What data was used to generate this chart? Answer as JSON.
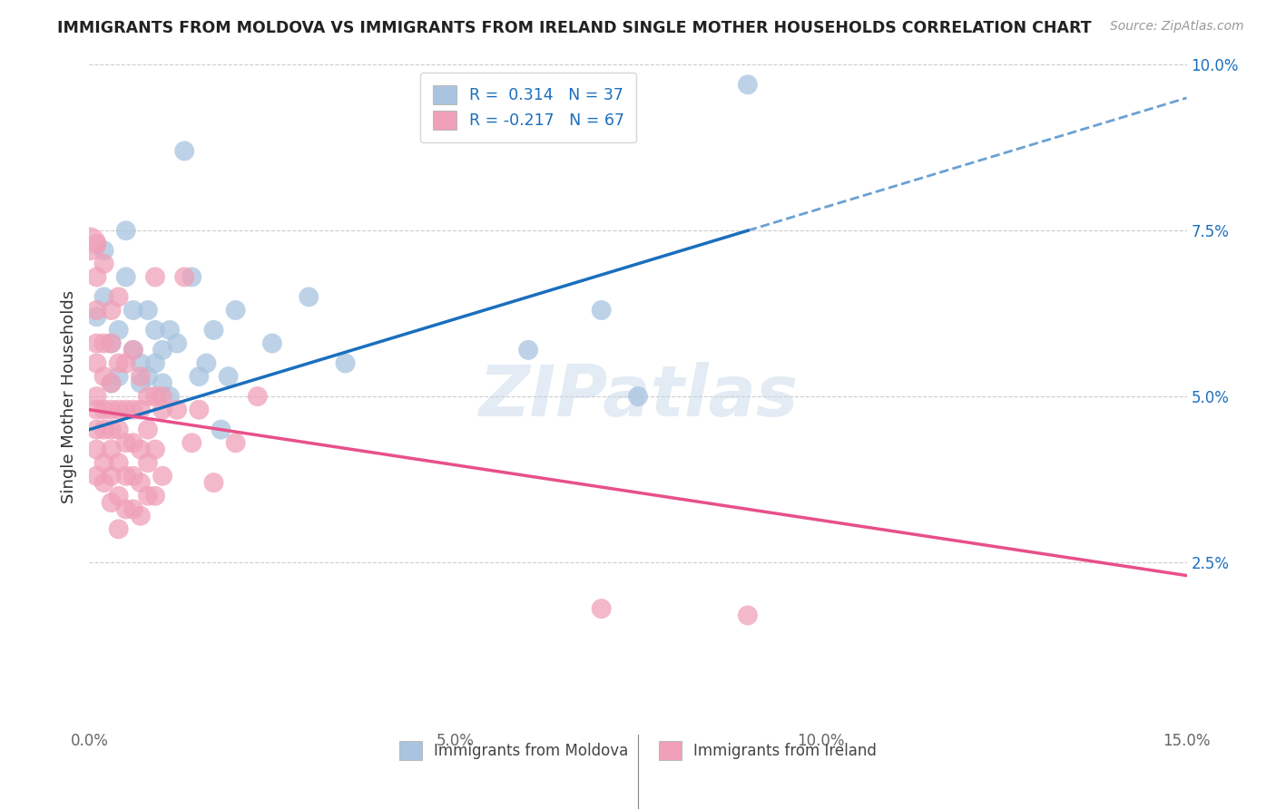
{
  "title": "IMMIGRANTS FROM MOLDOVA VS IMMIGRANTS FROM IRELAND SINGLE MOTHER HOUSEHOLDS CORRELATION CHART",
  "source": "Source: ZipAtlas.com",
  "ylabel": "Single Mother Households",
  "xlim": [
    0.0,
    0.15
  ],
  "ylim": [
    0.0,
    0.1
  ],
  "xticks": [
    0.0,
    0.05,
    0.1,
    0.15
  ],
  "xtick_labels": [
    "0.0%",
    "5.0%",
    "10.0%",
    "15.0%"
  ],
  "yticks": [
    0.025,
    0.05,
    0.075,
    0.1
  ],
  "ytick_labels": [
    "2.5%",
    "5.0%",
    "7.5%",
    "10.0%"
  ],
  "moldova_color": "#a8c4e0",
  "ireland_color": "#f0a0b8",
  "moldova_line_color": "#1a6fbd",
  "ireland_line_color": "#e8508a",
  "moldova_R": 0.314,
  "moldova_N": 37,
  "ireland_R": -0.217,
  "ireland_N": 67,
  "watermark": "ZIPatlas",
  "background_color": "#ffffff",
  "moldova_line_solid": [
    0.0,
    0.045,
    0.09,
    0.075
  ],
  "moldova_line_dashed": [
    0.09,
    0.075,
    0.15,
    0.095
  ],
  "ireland_line": [
    0.0,
    0.048,
    0.15,
    0.023
  ],
  "moldova_points": [
    [
      0.001,
      0.062
    ],
    [
      0.002,
      0.065
    ],
    [
      0.002,
      0.072
    ],
    [
      0.003,
      0.058
    ],
    [
      0.003,
      0.052
    ],
    [
      0.004,
      0.06
    ],
    [
      0.004,
      0.053
    ],
    [
      0.005,
      0.075
    ],
    [
      0.005,
      0.068
    ],
    [
      0.006,
      0.063
    ],
    [
      0.006,
      0.057
    ],
    [
      0.007,
      0.055
    ],
    [
      0.007,
      0.052
    ],
    [
      0.008,
      0.053
    ],
    [
      0.008,
      0.063
    ],
    [
      0.009,
      0.06
    ],
    [
      0.009,
      0.055
    ],
    [
      0.01,
      0.057
    ],
    [
      0.01,
      0.052
    ],
    [
      0.011,
      0.05
    ],
    [
      0.011,
      0.06
    ],
    [
      0.012,
      0.058
    ],
    [
      0.013,
      0.087
    ],
    [
      0.014,
      0.068
    ],
    [
      0.015,
      0.053
    ],
    [
      0.016,
      0.055
    ],
    [
      0.017,
      0.06
    ],
    [
      0.018,
      0.045
    ],
    [
      0.019,
      0.053
    ],
    [
      0.02,
      0.063
    ],
    [
      0.025,
      0.058
    ],
    [
      0.03,
      0.065
    ],
    [
      0.035,
      0.055
    ],
    [
      0.06,
      0.057
    ],
    [
      0.07,
      0.063
    ],
    [
      0.075,
      0.05
    ],
    [
      0.09,
      0.097
    ]
  ],
  "ireland_points": [
    [
      0.001,
      0.073
    ],
    [
      0.001,
      0.068
    ],
    [
      0.001,
      0.063
    ],
    [
      0.001,
      0.058
    ],
    [
      0.001,
      0.055
    ],
    [
      0.001,
      0.05
    ],
    [
      0.001,
      0.048
    ],
    [
      0.001,
      0.045
    ],
    [
      0.001,
      0.042
    ],
    [
      0.001,
      0.038
    ],
    [
      0.002,
      0.07
    ],
    [
      0.002,
      0.058
    ],
    [
      0.002,
      0.053
    ],
    [
      0.002,
      0.048
    ],
    [
      0.002,
      0.045
    ],
    [
      0.002,
      0.04
    ],
    [
      0.002,
      0.037
    ],
    [
      0.003,
      0.063
    ],
    [
      0.003,
      0.058
    ],
    [
      0.003,
      0.052
    ],
    [
      0.003,
      0.048
    ],
    [
      0.003,
      0.045
    ],
    [
      0.003,
      0.042
    ],
    [
      0.003,
      0.038
    ],
    [
      0.003,
      0.034
    ],
    [
      0.004,
      0.065
    ],
    [
      0.004,
      0.055
    ],
    [
      0.004,
      0.048
    ],
    [
      0.004,
      0.045
    ],
    [
      0.004,
      0.04
    ],
    [
      0.004,
      0.035
    ],
    [
      0.004,
      0.03
    ],
    [
      0.005,
      0.055
    ],
    [
      0.005,
      0.048
    ],
    [
      0.005,
      0.043
    ],
    [
      0.005,
      0.038
    ],
    [
      0.005,
      0.033
    ],
    [
      0.006,
      0.057
    ],
    [
      0.006,
      0.048
    ],
    [
      0.006,
      0.043
    ],
    [
      0.006,
      0.038
    ],
    [
      0.006,
      0.033
    ],
    [
      0.007,
      0.053
    ],
    [
      0.007,
      0.048
    ],
    [
      0.007,
      0.042
    ],
    [
      0.007,
      0.037
    ],
    [
      0.007,
      0.032
    ],
    [
      0.008,
      0.05
    ],
    [
      0.008,
      0.045
    ],
    [
      0.008,
      0.04
    ],
    [
      0.008,
      0.035
    ],
    [
      0.009,
      0.068
    ],
    [
      0.009,
      0.05
    ],
    [
      0.009,
      0.042
    ],
    [
      0.009,
      0.035
    ],
    [
      0.01,
      0.05
    ],
    [
      0.01,
      0.048
    ],
    [
      0.01,
      0.038
    ],
    [
      0.012,
      0.048
    ],
    [
      0.013,
      0.068
    ],
    [
      0.014,
      0.043
    ],
    [
      0.015,
      0.048
    ],
    [
      0.017,
      0.037
    ],
    [
      0.02,
      0.043
    ],
    [
      0.023,
      0.05
    ],
    [
      0.07,
      0.018
    ],
    [
      0.09,
      0.017
    ]
  ]
}
